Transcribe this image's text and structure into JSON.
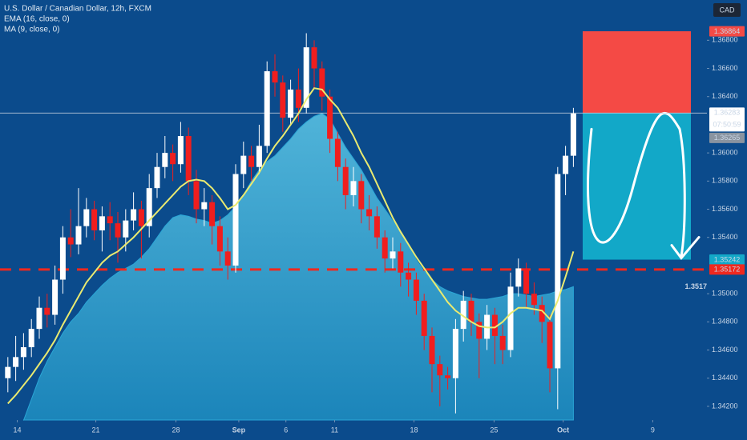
{
  "chart_data": {
    "type": "candlestick",
    "title": "U.S. Dollar / Canadian Dollar, 12h, FXCM",
    "currency": "CAD",
    "up_color": "#ffffff",
    "down_color": "#f01e1e",
    "candles": [
      [
        1.344,
        1.3455,
        1.343,
        1.3448
      ],
      [
        1.3448,
        1.347,
        1.3438,
        1.3455
      ],
      [
        1.3455,
        1.3472,
        1.3446,
        1.3462
      ],
      [
        1.3462,
        1.3482,
        1.3455,
        1.3475
      ],
      [
        1.3475,
        1.3498,
        1.3468,
        1.349
      ],
      [
        1.349,
        1.35,
        1.3476,
        1.3485
      ],
      [
        1.3485,
        1.352,
        1.3478,
        1.351
      ],
      [
        1.351,
        1.3548,
        1.35,
        1.354
      ],
      [
        1.354,
        1.356,
        1.3526,
        1.3535
      ],
      [
        1.3535,
        1.3575,
        1.3528,
        1.3548
      ],
      [
        1.3548,
        1.3568,
        1.354,
        1.356
      ],
      [
        1.356,
        1.3566,
        1.3538,
        1.3545
      ],
      [
        1.3545,
        1.3562,
        1.353,
        1.3555
      ],
      [
        1.3555,
        1.3565,
        1.3538,
        1.355
      ],
      [
        1.355,
        1.3558,
        1.3522,
        1.354
      ],
      [
        1.354,
        1.356,
        1.353,
        1.3552
      ],
      [
        1.3552,
        1.3572,
        1.3545,
        1.356
      ],
      [
        1.356,
        1.3566,
        1.3525,
        1.3548
      ],
      [
        1.3548,
        1.3585,
        1.354,
        1.3575
      ],
      [
        1.3575,
        1.36,
        1.3568,
        1.359
      ],
      [
        1.359,
        1.3612,
        1.3582,
        1.36
      ],
      [
        1.36,
        1.3606,
        1.358,
        1.3592
      ],
      [
        1.3592,
        1.3622,
        1.3586,
        1.3612
      ],
      [
        1.3612,
        1.3618,
        1.357,
        1.358
      ],
      [
        1.358,
        1.3588,
        1.355,
        1.356
      ],
      [
        1.356,
        1.3575,
        1.3548,
        1.3565
      ],
      [
        1.3565,
        1.357,
        1.3535,
        1.3548
      ],
      [
        1.3548,
        1.3555,
        1.352,
        1.353
      ],
      [
        1.353,
        1.354,
        1.351,
        1.352
      ],
      [
        1.352,
        1.3592,
        1.3515,
        1.3585
      ],
      [
        1.3585,
        1.3608,
        1.3575,
        1.3598
      ],
      [
        1.3598,
        1.3605,
        1.358,
        1.359
      ],
      [
        1.359,
        1.362,
        1.3585,
        1.3605
      ],
      [
        1.3605,
        1.3665,
        1.36,
        1.3658
      ],
      [
        1.3658,
        1.367,
        1.364,
        1.365
      ],
      [
        1.365,
        1.3655,
        1.3615,
        1.3625
      ],
      [
        1.3625,
        1.3652,
        1.362,
        1.3645
      ],
      [
        1.3645,
        1.366,
        1.3622,
        1.3632
      ],
      [
        1.3632,
        1.3685,
        1.3628,
        1.3675
      ],
      [
        1.3675,
        1.368,
        1.3645,
        1.366
      ],
      [
        1.366,
        1.3665,
        1.363,
        1.364
      ],
      [
        1.364,
        1.3645,
        1.36,
        1.361
      ],
      [
        1.361,
        1.3615,
        1.358,
        1.359
      ],
      [
        1.359,
        1.3596,
        1.356,
        1.357
      ],
      [
        1.357,
        1.359,
        1.3562,
        1.358
      ],
      [
        1.358,
        1.3585,
        1.355,
        1.356
      ],
      [
        1.356,
        1.357,
        1.3545,
        1.3555
      ],
      [
        1.3555,
        1.3562,
        1.3532,
        1.354
      ],
      [
        1.354,
        1.3545,
        1.3515,
        1.3525
      ],
      [
        1.3525,
        1.354,
        1.3518,
        1.353
      ],
      [
        1.353,
        1.3536,
        1.3505,
        1.3515
      ],
      [
        1.3515,
        1.3522,
        1.3498,
        1.351
      ],
      [
        1.351,
        1.3515,
        1.3485,
        1.3495
      ],
      [
        1.3495,
        1.35,
        1.346,
        1.347
      ],
      [
        1.347,
        1.3476,
        1.343,
        1.345
      ],
      [
        1.345,
        1.3456,
        1.342,
        1.3442
      ],
      [
        1.3442,
        1.3448,
        1.3432,
        1.344
      ],
      [
        1.344,
        1.3482,
        1.3415,
        1.3475
      ],
      [
        1.3475,
        1.3502,
        1.3466,
        1.3495
      ],
      [
        1.3495,
        1.35,
        1.347,
        1.348
      ],
      [
        1.348,
        1.3486,
        1.344,
        1.3468
      ],
      [
        1.3468,
        1.3492,
        1.346,
        1.3485
      ],
      [
        1.3485,
        1.349,
        1.345,
        1.347
      ],
      [
        1.347,
        1.3478,
        1.345,
        1.346
      ],
      [
        1.346,
        1.3515,
        1.3455,
        1.3505
      ],
      [
        1.3505,
        1.3525,
        1.3498,
        1.3518
      ],
      [
        1.3518,
        1.3522,
        1.349,
        1.35
      ],
      [
        1.35,
        1.3508,
        1.3485,
        1.3492
      ],
      [
        1.3492,
        1.3498,
        1.3465,
        1.348
      ],
      [
        1.348,
        1.3485,
        1.343,
        1.3447
      ],
      [
        1.3447,
        1.359,
        1.3418,
        1.3585
      ],
      [
        1.3585,
        1.3605,
        1.357,
        1.3598
      ],
      [
        1.3598,
        1.3632,
        1.359,
        1.3628
      ]
    ],
    "series": [
      {
        "name": "EMA (16, close, 0)",
        "color": "#eaea70",
        "values": [
          1.3422,
          1.3428,
          1.3435,
          1.3442,
          1.345,
          1.3458,
          1.3467,
          1.3478,
          1.3488,
          1.3498,
          1.3508,
          1.3515,
          1.3522,
          1.3527,
          1.353,
          1.3535,
          1.354,
          1.3546,
          1.3552,
          1.3558,
          1.3564,
          1.357,
          1.3576,
          1.358,
          1.3581,
          1.358,
          1.3575,
          1.3568,
          1.356,
          1.3563,
          1.357,
          1.3578,
          1.3586,
          1.3596,
          1.3605,
          1.3612,
          1.362,
          1.3628,
          1.3638,
          1.3646,
          1.3645,
          1.3638,
          1.3632,
          1.3622,
          1.3612,
          1.36,
          1.359,
          1.3578,
          1.3566,
          1.3554,
          1.3544,
          1.3535,
          1.3526,
          1.3518,
          1.351,
          1.3502,
          1.3494,
          1.3488,
          1.3484,
          1.348,
          1.3477,
          1.3476,
          1.3476,
          1.348,
          1.3486,
          1.349,
          1.349,
          1.3489,
          1.3488,
          1.3482,
          1.3495,
          1.3512,
          1.353
        ]
      },
      {
        "name": "MA (9, close, 0)",
        "color": "#2aa6d6",
        "values": [
          null,
          null,
          1.341,
          1.3425,
          1.344,
          1.3452,
          1.3462,
          1.3472,
          1.348,
          1.3486,
          1.3494,
          1.35,
          1.3506,
          1.3511,
          1.3515,
          1.3518,
          1.3521,
          1.3526,
          1.3532,
          1.354,
          1.3548,
          1.3554,
          1.3556,
          1.3555,
          1.3553,
          1.3552,
          1.355,
          1.3552,
          1.3556,
          1.3562,
          1.357,
          1.358,
          1.3588,
          1.3594,
          1.3598,
          1.3604,
          1.361,
          1.3617,
          1.3622,
          1.3626,
          1.3628,
          1.3624,
          1.3614,
          1.3604,
          1.3596,
          1.3588,
          1.3578,
          1.3568,
          1.356,
          1.3552,
          1.3544,
          1.3534,
          1.3524,
          1.3516,
          1.351,
          1.3505,
          1.3502,
          1.35,
          1.3498,
          1.3497,
          1.3496,
          1.3496,
          1.3497,
          1.3498,
          1.35,
          1.35,
          1.3499,
          1.3498,
          1.3499,
          1.35,
          1.3502,
          1.3503,
          1.3505
        ]
      }
    ],
    "xlim": [
      -1,
      89
    ],
    "xticks": [
      {
        "value": 1.2,
        "label": "14"
      },
      {
        "value": 11.2,
        "label": "21"
      },
      {
        "value": 21.4,
        "label": "28"
      },
      {
        "value": 29.4,
        "label": "Sep"
      },
      {
        "value": 35.4,
        "label": "6"
      },
      {
        "value": 41.6,
        "label": "11"
      },
      {
        "value": 51.7,
        "label": "18"
      },
      {
        "value": 61.9,
        "label": "25"
      },
      {
        "value": 70.7,
        "label": "Oct"
      },
      {
        "value": 82.1,
        "label": "9"
      }
    ],
    "ylim": [
      1.34103,
      1.37086
    ],
    "yticks": [
      {
        "value": 1.342,
        "label": "1.34200"
      },
      {
        "value": 1.344,
        "label": "1.34400"
      },
      {
        "value": 1.346,
        "label": "1.34600"
      },
      {
        "value": 1.348,
        "label": "1.34800"
      },
      {
        "value": 1.35,
        "label": "1.35000"
      },
      {
        "value": 1.354,
        "label": "1.35400"
      },
      {
        "value": 1.356,
        "label": "1.35600"
      },
      {
        "value": 1.358,
        "label": "1.35800"
      },
      {
        "value": 1.36,
        "label": "1.36000"
      },
      {
        "value": 1.364,
        "label": "1.36400"
      },
      {
        "value": 1.366,
        "label": "1.36600"
      },
      {
        "value": 1.368,
        "label": "1.36800"
      }
    ],
    "last_price": 1.36283,
    "countdown": "07:50:59",
    "bid": 1.36265,
    "position": {
      "stop": 1.36864,
      "entry": 1.36283,
      "target": 1.35242
    },
    "level": 1.35172,
    "level_label": 1.3517
  }
}
